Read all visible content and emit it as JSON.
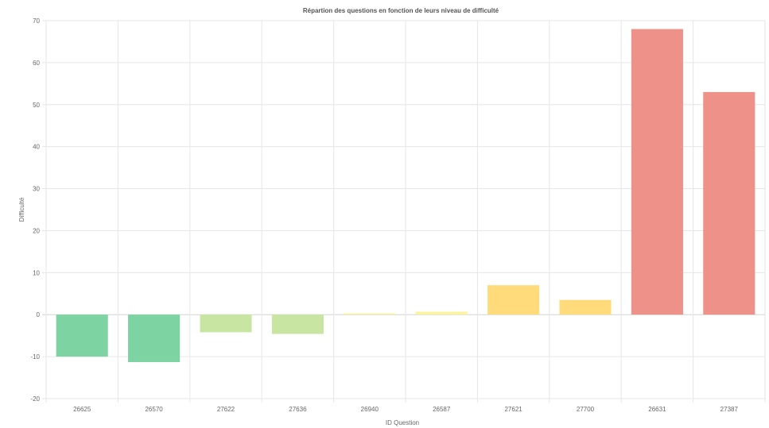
{
  "chart_data": {
    "type": "bar",
    "title": "Répartion des questions en fonction de leurs niveau de difficulté",
    "xlabel": "ID Question",
    "ylabel": "Difficulté",
    "ylim": [
      -20,
      70
    ],
    "yticks": [
      -20,
      -10,
      0,
      10,
      20,
      30,
      40,
      50,
      60,
      70
    ],
    "categories": [
      "26625",
      "26570",
      "27622",
      "27636",
      "26940",
      "26587",
      "27621",
      "27700",
      "26631",
      "27387"
    ],
    "values": [
      -10,
      -11.3,
      -4.2,
      -4.6,
      0.3,
      0.7,
      7,
      3.5,
      68,
      53
    ],
    "colors": [
      "#7dd3a1",
      "#7dd3a1",
      "#c8e6a2",
      "#c8e6a2",
      "#fbf5a0",
      "#fbf5a0",
      "#ffdb7b",
      "#ffdb7b",
      "#ee9189",
      "#ee9189"
    ],
    "grid": true,
    "legend": "none"
  }
}
